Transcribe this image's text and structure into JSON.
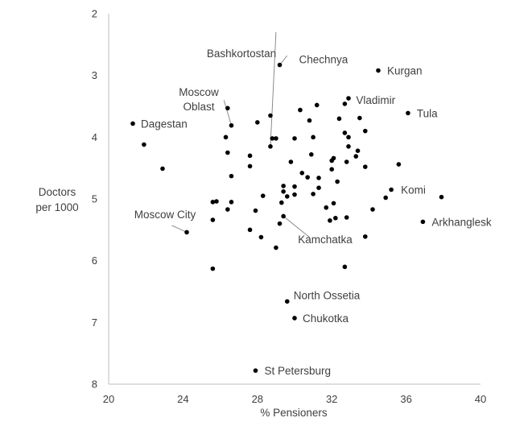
{
  "chart_data": {
    "type": "scatter",
    "title": "",
    "xlabel": "% Pensioners",
    "ylabel": [
      "Doctors",
      "per 1000"
    ],
    "xlim": [
      20,
      40
    ],
    "ylim": [
      2,
      8
    ],
    "y_inverted": true,
    "grid": false,
    "x_ticks": [
      "20",
      "24",
      "28",
      "32",
      "36",
      "40"
    ],
    "y_ticks": [
      "2",
      "3",
      "4",
      "5",
      "6",
      "7",
      "8"
    ],
    "points": [
      {
        "x": 29.2,
        "y": 2.83,
        "label": "Chechnya"
      },
      {
        "x": 34.5,
        "y": 2.92,
        "label": "Kurgan"
      },
      {
        "x": 32.7,
        "y": 3.46,
        "label": "Vladimir"
      },
      {
        "x": 36.1,
        "y": 3.61,
        "label": "Tula"
      },
      {
        "x": 21.3,
        "y": 3.78,
        "label": "Dagestan"
      },
      {
        "x": 26.6,
        "y": 3.81,
        "label": "Moscow Oblast"
      },
      {
        "x": 28.7,
        "y": 4.15,
        "label": "Bashkortostan"
      },
      {
        "x": 35.2,
        "y": 4.85,
        "label": "Komi"
      },
      {
        "x": 36.9,
        "y": 5.37,
        "label": "Arkhanglesk"
      },
      {
        "x": 24.2,
        "y": 5.54,
        "label": "Moscow City"
      },
      {
        "x": 29.4,
        "y": 5.28,
        "label": "Kamchatka"
      },
      {
        "x": 29.6,
        "y": 6.66,
        "label": "North Ossetia"
      },
      {
        "x": 30.0,
        "y": 6.93,
        "label": "Chukotka"
      },
      {
        "x": 27.9,
        "y": 7.78,
        "label": "St Petersburg"
      },
      {
        "x": 21.9,
        "y": 4.12
      },
      {
        "x": 22.9,
        "y": 4.51
      },
      {
        "x": 26.4,
        "y": 3.53
      },
      {
        "x": 28.7,
        "y": 3.65
      },
      {
        "x": 30.3,
        "y": 3.56
      },
      {
        "x": 31.2,
        "y": 3.48
      },
      {
        "x": 32.9,
        "y": 3.37
      },
      {
        "x": 30.8,
        "y": 3.73
      },
      {
        "x": 28.0,
        "y": 3.76
      },
      {
        "x": 26.3,
        "y": 4.0
      },
      {
        "x": 28.8,
        "y": 4.02
      },
      {
        "x": 29.0,
        "y": 4.02
      },
      {
        "x": 30.0,
        "y": 4.02
      },
      {
        "x": 31.0,
        "y": 4.0
      },
      {
        "x": 32.4,
        "y": 3.7
      },
      {
        "x": 33.5,
        "y": 3.69
      },
      {
        "x": 33.8,
        "y": 3.9
      },
      {
        "x": 32.7,
        "y": 3.93
      },
      {
        "x": 32.9,
        "y": 4.0
      },
      {
        "x": 32.9,
        "y": 4.15
      },
      {
        "x": 33.4,
        "y": 4.22
      },
      {
        "x": 33.3,
        "y": 4.31
      },
      {
        "x": 26.4,
        "y": 4.25
      },
      {
        "x": 27.6,
        "y": 4.3
      },
      {
        "x": 30.9,
        "y": 4.28
      },
      {
        "x": 32.1,
        "y": 4.34
      },
      {
        "x": 32.0,
        "y": 4.38
      },
      {
        "x": 32.8,
        "y": 4.4
      },
      {
        "x": 35.6,
        "y": 4.44
      },
      {
        "x": 33.8,
        "y": 4.48
      },
      {
        "x": 27.6,
        "y": 4.47
      },
      {
        "x": 29.8,
        "y": 4.4
      },
      {
        "x": 32.0,
        "y": 4.52
      },
      {
        "x": 30.4,
        "y": 4.58
      },
      {
        "x": 30.7,
        "y": 4.65
      },
      {
        "x": 31.3,
        "y": 4.66
      },
      {
        "x": 26.6,
        "y": 4.63
      },
      {
        "x": 32.3,
        "y": 4.72
      },
      {
        "x": 29.4,
        "y": 4.79
      },
      {
        "x": 30.0,
        "y": 4.8
      },
      {
        "x": 31.3,
        "y": 4.82
      },
      {
        "x": 31.0,
        "y": 4.92
      },
      {
        "x": 28.3,
        "y": 4.95
      },
      {
        "x": 29.4,
        "y": 4.88
      },
      {
        "x": 29.6,
        "y": 4.96
      },
      {
        "x": 30.0,
        "y": 4.93
      },
      {
        "x": 34.9,
        "y": 4.98
      },
      {
        "x": 37.9,
        "y": 4.97
      },
      {
        "x": 25.6,
        "y": 5.05
      },
      {
        "x": 25.8,
        "y": 5.04
      },
      {
        "x": 26.6,
        "y": 5.05
      },
      {
        "x": 29.3,
        "y": 5.06
      },
      {
        "x": 32.1,
        "y": 5.07
      },
      {
        "x": 31.7,
        "y": 5.14
      },
      {
        "x": 34.2,
        "y": 5.17
      },
      {
        "x": 26.4,
        "y": 5.17
      },
      {
        "x": 27.9,
        "y": 5.19
      },
      {
        "x": 32.2,
        "y": 5.31
      },
      {
        "x": 32.8,
        "y": 5.3
      },
      {
        "x": 31.9,
        "y": 5.35
      },
      {
        "x": 25.6,
        "y": 5.34
      },
      {
        "x": 29.2,
        "y": 5.4
      },
      {
        "x": 27.6,
        "y": 5.5
      },
      {
        "x": 28.2,
        "y": 5.62
      },
      {
        "x": 33.8,
        "y": 5.61
      },
      {
        "x": 29.0,
        "y": 5.79
      },
      {
        "x": 25.6,
        "y": 6.13
      },
      {
        "x": 32.7,
        "y": 6.1
      }
    ],
    "annotation_leaders": [
      {
        "label": "Bashkortostan",
        "leader_from": [
          29.0,
          2.3
        ]
      },
      {
        "label": "Moscow Oblast",
        "leader_from": [
          26.2,
          3.4
        ]
      },
      {
        "label": "Chechnya",
        "leader_from": [
          29.6,
          2.68
        ]
      },
      {
        "label": "Moscow City",
        "leader_from": [
          23.4,
          5.43
        ]
      },
      {
        "label": "Kamchatka",
        "leader_from": [
          30.8,
          5.62
        ]
      }
    ]
  }
}
